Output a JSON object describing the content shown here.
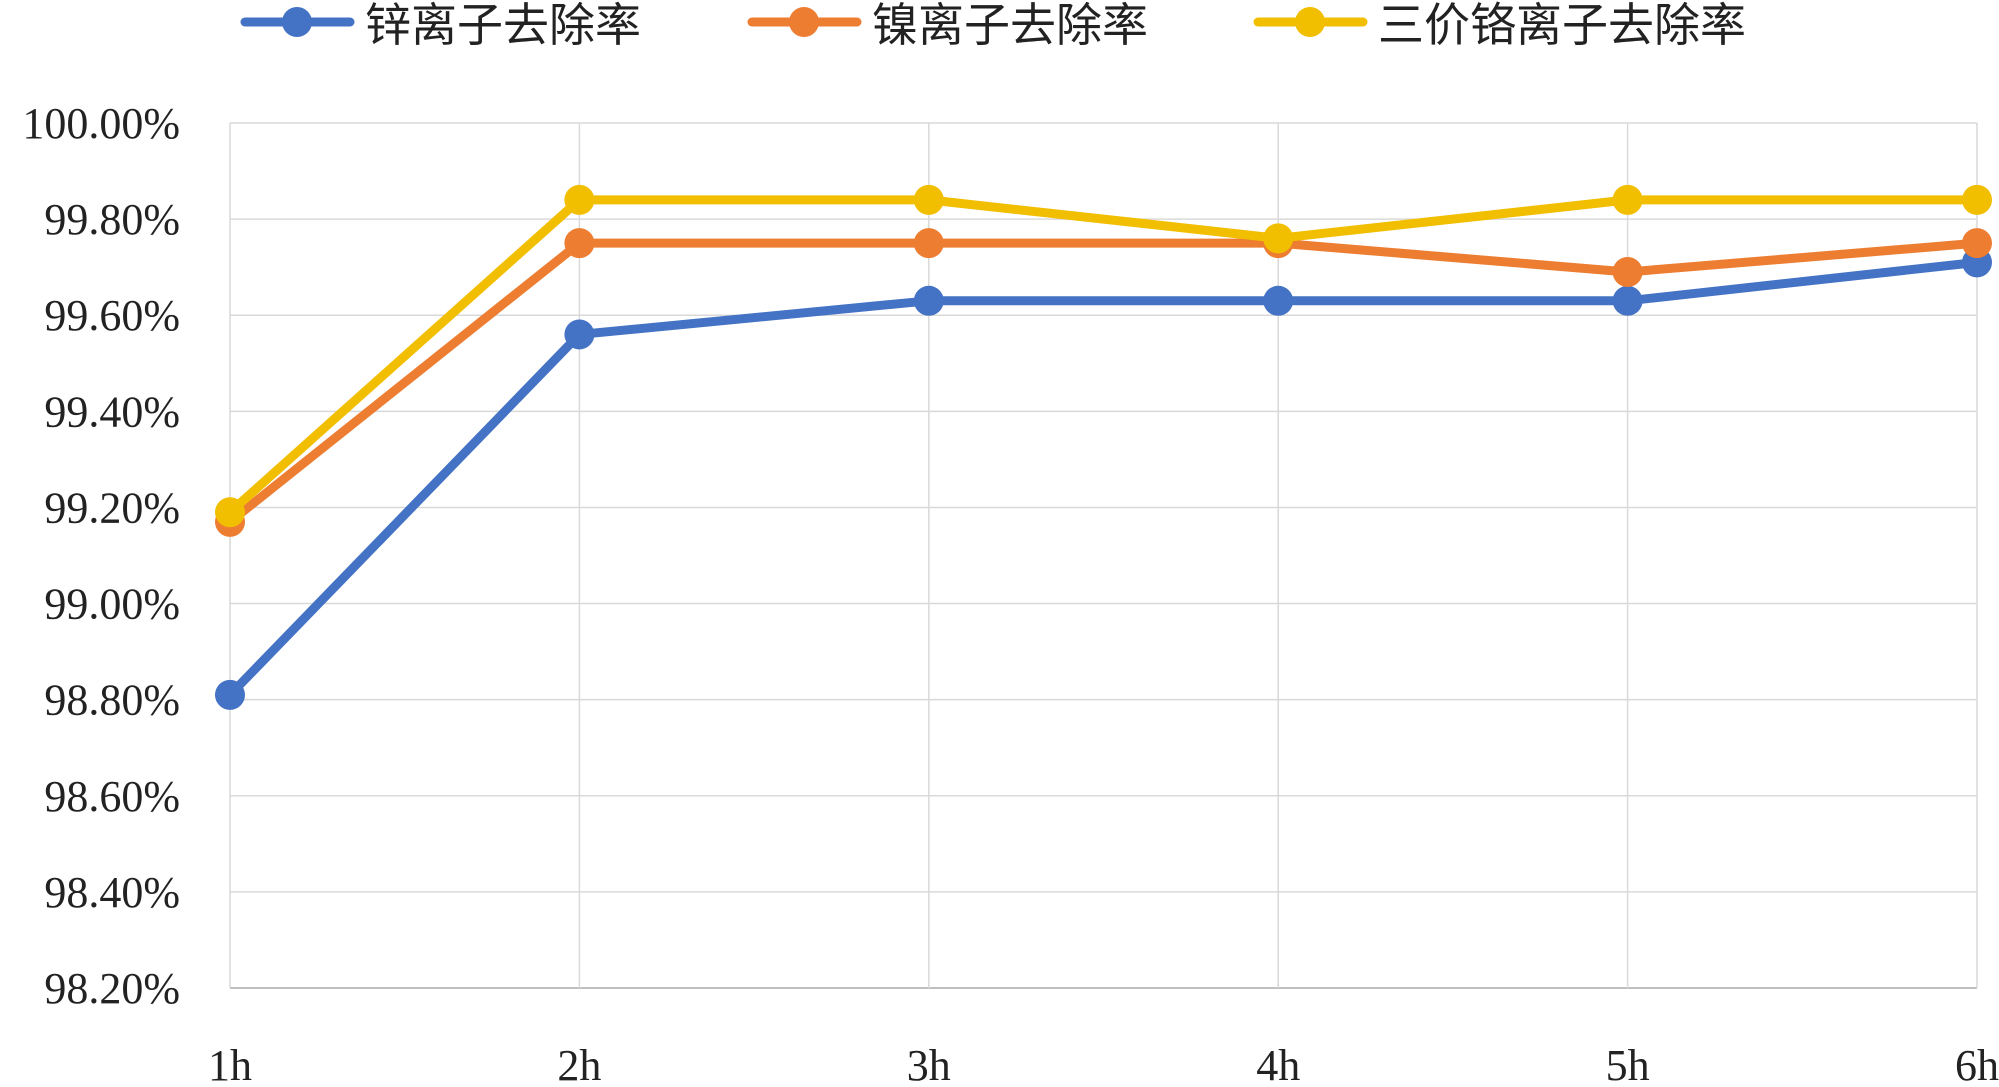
{
  "chart_data": {
    "type": "line",
    "title": "",
    "xlabel": "",
    "ylabel": "",
    "categories": [
      "1h",
      "2h",
      "3h",
      "4h",
      "5h",
      "6h"
    ],
    "ylim": [
      98.2,
      100.0
    ],
    "y_ticks": [
      "98.20%",
      "98.40%",
      "98.60%",
      "98.80%",
      "99.00%",
      "99.20%",
      "99.40%",
      "99.60%",
      "99.80%",
      "100.00%"
    ],
    "legend_position": "top",
    "grid": true,
    "series": [
      {
        "name": "锌离子去除率",
        "color": "#4472C4",
        "values": [
          98.81,
          99.56,
          99.63,
          99.63,
          99.63,
          99.71
        ]
      },
      {
        "name": "镍离子去除率",
        "color": "#ED7D31",
        "values": [
          99.17,
          99.75,
          99.75,
          99.75,
          99.69,
          99.75
        ]
      },
      {
        "name": "三价铬离子去除率",
        "color": "#F2BE00",
        "values": [
          99.19,
          99.84,
          99.84,
          99.76,
          99.84,
          99.84
        ]
      }
    ]
  }
}
